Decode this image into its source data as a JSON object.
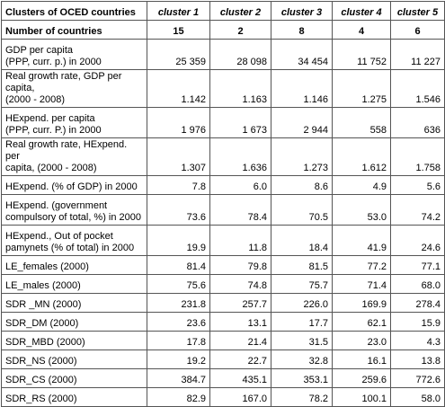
{
  "table": {
    "header": [
      "Clusters of OCED countries",
      "cluster 1",
      "cluster 2",
      "cluster 3",
      "cluster 4",
      "cluster 5"
    ],
    "count_row": {
      "label": "Number of countries",
      "values": [
        "15",
        "2",
        "8",
        "4",
        "6"
      ]
    },
    "rows": [
      {
        "label": [
          "GDP per capita",
          "(PPP, curr. p.) in 2000"
        ],
        "values": [
          "25 359",
          "28 098",
          "34 454",
          "11 752",
          "11 227"
        ]
      },
      {
        "label": [
          "Real growth rate, GDP per capita,",
          "(2000 - 2008)"
        ],
        "values": [
          "1.142",
          "1.163",
          "1.146",
          "1.275",
          "1.546"
        ]
      },
      {
        "label": [
          "HExpend. per capita",
          "(PPP, curr. P.) in 2000"
        ],
        "values": [
          "1 976",
          "1 673",
          "2 944",
          "558",
          "636"
        ]
      },
      {
        "label": [
          "Real growth rate, HExpend. per",
          "capita, (2000 - 2008)"
        ],
        "values": [
          "1.307",
          "1.636",
          "1.273",
          "1.612",
          "1.758"
        ]
      },
      {
        "label": [
          "HExpend. (% of GDP) in 2000"
        ],
        "values": [
          "7.8",
          "6.0",
          "8.6",
          "4.9",
          "5.6"
        ]
      },
      {
        "label": [
          "HExpend. (government",
          "compulsory of total, %) in 2000"
        ],
        "values": [
          "73.6",
          "78.4",
          "70.5",
          "53.0",
          "74.2"
        ]
      },
      {
        "label": [
          "HExpend., Out of pocket",
          "pamynets (% of total) in 2000"
        ],
        "values": [
          "19.9",
          "11.8",
          "18.4",
          "41.9",
          "24.6"
        ]
      },
      {
        "label": [
          "LE_females (2000)"
        ],
        "values": [
          "81.4",
          "79.8",
          "81.5",
          "77.2",
          "77.1"
        ]
      },
      {
        "label": [
          "LE_males (2000)"
        ],
        "values": [
          "75.6",
          "74.8",
          "75.7",
          "71.4",
          "68.0"
        ]
      },
      {
        "label": [
          "SDR _MN (2000)"
        ],
        "values": [
          "231.8",
          "257.7",
          "226.0",
          "169.9",
          "278.4"
        ]
      },
      {
        "label": [
          "SDR_DM (2000)"
        ],
        "values": [
          "23.6",
          "13.1",
          "17.7",
          "62.1",
          "15.9"
        ]
      },
      {
        "label": [
          "SDR_MBD (2000)"
        ],
        "values": [
          "17.8",
          "21.4",
          "31.5",
          "23.0",
          "4.3"
        ]
      },
      {
        "label": [
          "SDR_NS (2000)"
        ],
        "values": [
          "19.2",
          "22.7",
          "32.8",
          "16.1",
          "13.8"
        ]
      },
      {
        "label": [
          "SDR_CS (2000)"
        ],
        "values": [
          "384.7",
          "435.1",
          "353.1",
          "259.6",
          "772.6"
        ]
      },
      {
        "label": [
          "SDR_RS (2000)"
        ],
        "values": [
          "82.9",
          "167.0",
          "78.2",
          "100.1",
          "58.0"
        ]
      }
    ]
  }
}
